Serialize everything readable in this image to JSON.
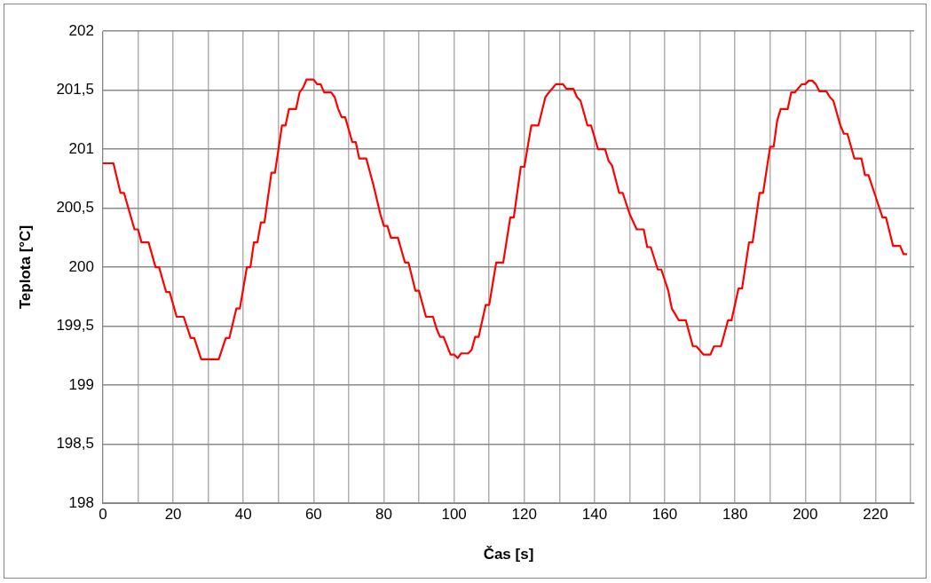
{
  "chart_data": {
    "type": "line",
    "xlabel": "Čas [s]",
    "ylabel": "Teplota [°C]",
    "xlim": [
      0,
      231
    ],
    "xticks": [
      0,
      {
        "value": 10,
        "label": null
      },
      20,
      {
        "value": 30,
        "label": null
      },
      40,
      {
        "value": 50,
        "label": null
      },
      60,
      {
        "value": 70,
        "label": null
      },
      80,
      {
        "value": 90,
        "label": null
      },
      100,
      {
        "value": 110,
        "label": null
      },
      120,
      {
        "value": 130,
        "label": null
      },
      140,
      {
        "value": 150,
        "label": null
      },
      160,
      {
        "value": 170,
        "label": null
      },
      180,
      {
        "value": 190,
        "label": null
      },
      200,
      {
        "value": 210,
        "label": null
      },
      220,
      {
        "value": 230,
        "label": null
      }
    ],
    "ylim": [
      198,
      202
    ],
    "yticks": [
      198,
      {
        "value": 198.5,
        "label": "198,5"
      },
      199,
      {
        "value": 199.5,
        "label": "199,5"
      },
      200,
      {
        "value": 200.5,
        "label": "200,5"
      },
      201,
      {
        "value": 201.5,
        "label": "201,5"
      },
      202
    ],
    "grid": true,
    "legend": false,
    "marker": "none",
    "line_style": "solid",
    "series": [
      {
        "color": "#ff0000",
        "x": [
          0,
          3,
          5,
          6,
          9,
          10,
          11,
          13,
          15,
          16,
          18,
          19,
          21,
          23,
          25,
          26,
          28,
          33,
          35,
          36,
          38,
          39,
          41,
          42,
          43,
          44,
          45,
          46,
          48,
          49,
          51,
          52,
          53,
          55,
          56,
          57,
          58,
          60,
          61,
          62,
          63,
          65,
          66,
          67,
          68,
          69,
          71,
          72,
          73,
          75,
          77,
          79,
          80,
          81,
          82,
          84,
          86,
          87,
          89,
          90,
          92,
          94,
          95,
          96,
          97,
          99,
          100,
          101,
          102,
          104,
          105,
          106,
          107,
          109,
          110,
          112,
          114,
          116,
          117,
          119,
          120,
          122,
          124,
          126,
          127,
          129,
          131,
          132,
          134,
          135,
          136,
          138,
          139,
          141,
          143,
          144,
          145,
          147,
          148,
          150,
          152,
          154,
          155,
          156,
          158,
          159,
          161,
          162,
          164,
          166,
          168,
          169,
          171,
          173,
          174,
          176,
          178,
          179,
          181,
          182,
          184,
          185,
          187,
          188,
          190,
          191,
          192,
          193,
          195,
          196,
          197,
          199,
          200,
          201,
          202,
          203,
          204,
          206,
          207,
          208,
          210,
          211,
          212,
          214,
          216,
          217,
          218,
          220,
          222,
          223,
          225,
          227,
          228,
          229
        ],
        "values": [
          200.88,
          200.88,
          200.63,
          200.63,
          200.32,
          200.32,
          200.21,
          200.21,
          200.0,
          200.0,
          199.79,
          199.79,
          199.58,
          199.58,
          199.4,
          199.4,
          199.22,
          199.22,
          199.4,
          199.4,
          199.65,
          199.65,
          200.0,
          200.0,
          200.21,
          200.21,
          200.38,
          200.38,
          200.8,
          200.8,
          201.2,
          201.2,
          201.34,
          201.34,
          201.48,
          201.52,
          201.59,
          201.59,
          201.55,
          201.55,
          201.48,
          201.48,
          201.44,
          201.34,
          201.27,
          201.27,
          201.06,
          201.06,
          200.92,
          200.92,
          200.7,
          200.45,
          200.35,
          200.35,
          200.25,
          200.25,
          200.04,
          200.04,
          199.8,
          199.8,
          199.58,
          199.58,
          199.48,
          199.41,
          199.41,
          199.26,
          199.26,
          199.23,
          199.27,
          199.27,
          199.3,
          199.41,
          199.41,
          199.68,
          199.68,
          200.04,
          200.04,
          200.42,
          200.42,
          200.85,
          200.85,
          201.2,
          201.2,
          201.44,
          201.48,
          201.55,
          201.55,
          201.51,
          201.51,
          201.44,
          201.41,
          201.2,
          201.2,
          201.0,
          201.0,
          200.9,
          200.86,
          200.63,
          200.63,
          200.45,
          200.32,
          200.32,
          200.17,
          200.17,
          199.98,
          199.98,
          199.8,
          199.65,
          199.55,
          199.55,
          199.33,
          199.33,
          199.26,
          199.26,
          199.33,
          199.33,
          199.55,
          199.55,
          199.82,
          199.82,
          200.21,
          200.21,
          200.63,
          200.63,
          201.02,
          201.02,
          201.24,
          201.34,
          201.34,
          201.48,
          201.48,
          201.55,
          201.55,
          201.58,
          201.58,
          201.55,
          201.49,
          201.49,
          201.44,
          201.41,
          201.2,
          201.13,
          201.13,
          200.92,
          200.92,
          200.78,
          200.78,
          200.6,
          200.42,
          200.42,
          200.18,
          200.18,
          200.11,
          200.11
        ]
      }
    ]
  }
}
